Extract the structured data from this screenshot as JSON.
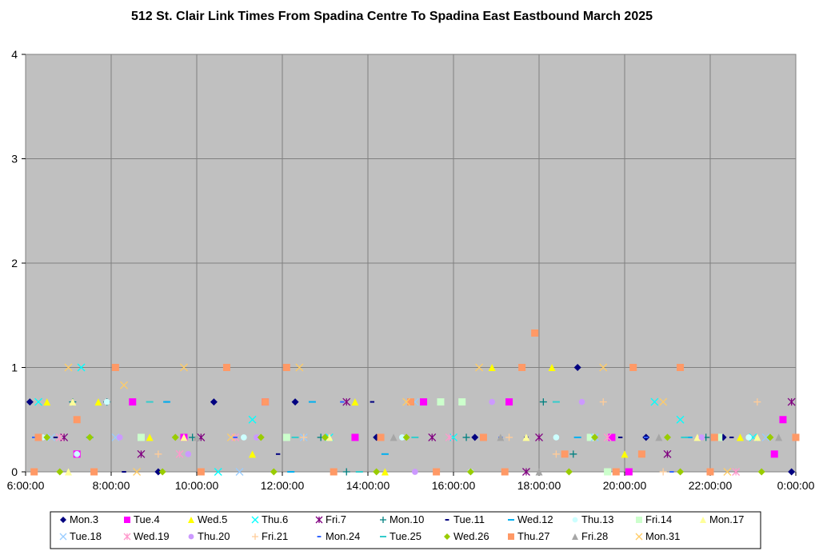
{
  "chart_data": {
    "type": "scatter",
    "title": "512 St. Clair Link Times From Spadina Centre To Spadina East Eastbound March 2025",
    "xlabel": "",
    "ylabel": "",
    "x_ticks": [
      "6:00:00",
      "8:00:00",
      "10:00:00",
      "12:00:00",
      "14:00:00",
      "16:00:00",
      "18:00:00",
      "20:00:00",
      "22:00:00",
      "0:00:00"
    ],
    "y_ticks": [
      "0",
      "1",
      "2",
      "3",
      "4"
    ],
    "xlim": [
      6,
      24
    ],
    "ylim": [
      0,
      4
    ],
    "grid": true,
    "plot_background": "#c0c0c0",
    "legend_position": "bottom",
    "series": [
      {
        "name": "Mon.3",
        "marker": "diamond",
        "color": "#000080",
        "points": [
          [
            6.1,
            0.67
          ],
          [
            7.9,
            0.67
          ],
          [
            10.4,
            0.67
          ],
          [
            12.3,
            0.67
          ],
          [
            14.2,
            0.33
          ],
          [
            16.5,
            0.33
          ],
          [
            18.9,
            1.0
          ],
          [
            20.5,
            0.33
          ],
          [
            22.3,
            0.33
          ],
          [
            23.9,
            0.0
          ],
          [
            9.1,
            0.0
          ]
        ]
      },
      {
        "name": "Tue.4",
        "marker": "square",
        "color": "#ff00ff",
        "points": [
          [
            7.2,
            0.17
          ],
          [
            8.5,
            0.67
          ],
          [
            9.7,
            0.33
          ],
          [
            11.6,
            0.67
          ],
          [
            13.7,
            0.33
          ],
          [
            15.3,
            0.67
          ],
          [
            17.3,
            0.67
          ],
          [
            19.7,
            0.33
          ],
          [
            23.5,
            0.17
          ],
          [
            23.7,
            0.5
          ],
          [
            20.1,
            0.0
          ]
        ]
      },
      {
        "name": "Wed.5",
        "marker": "triangle",
        "color": "#ffff00",
        "points": [
          [
            6.5,
            0.67
          ],
          [
            7.7,
            0.67
          ],
          [
            8.9,
            0.33
          ],
          [
            11.3,
            0.17
          ],
          [
            13.7,
            0.67
          ],
          [
            16.9,
            1.0
          ],
          [
            18.3,
            1.0
          ],
          [
            20.0,
            0.17
          ],
          [
            22.7,
            0.33
          ],
          [
            14.4,
            0.0
          ]
        ]
      },
      {
        "name": "Thu.6",
        "marker": "x",
        "color": "#00ffff",
        "points": [
          [
            6.3,
            0.67
          ],
          [
            7.3,
            1.0
          ],
          [
            11.3,
            0.5
          ],
          [
            13.1,
            0.33
          ],
          [
            16.0,
            0.33
          ],
          [
            19.3,
            0.33
          ],
          [
            20.7,
            0.67
          ],
          [
            21.3,
            0.5
          ],
          [
            23.0,
            0.33
          ],
          [
            10.5,
            0.0
          ]
        ]
      },
      {
        "name": "Fri.7",
        "marker": "star",
        "color": "#800080",
        "points": [
          [
            6.9,
            0.33
          ],
          [
            8.7,
            0.17
          ],
          [
            10.1,
            0.33
          ],
          [
            13.5,
            0.67
          ],
          [
            15.5,
            0.33
          ],
          [
            18.0,
            0.33
          ],
          [
            21.0,
            0.17
          ],
          [
            23.9,
            0.67
          ],
          [
            17.7,
            0.0
          ]
        ]
      },
      {
        "name": "Mon.10",
        "marker": "plus",
        "color": "#008080",
        "points": [
          [
            7.1,
            0.67
          ],
          [
            7.9,
            0.67
          ],
          [
            9.9,
            0.33
          ],
          [
            12.9,
            0.33
          ],
          [
            16.3,
            0.33
          ],
          [
            18.1,
            0.67
          ],
          [
            18.8,
            0.17
          ],
          [
            21.9,
            0.33
          ],
          [
            13.5,
            0.0
          ]
        ]
      },
      {
        "name": "Tue.11",
        "marker": "dash",
        "color": "#000080",
        "points": [
          [
            6.7,
            0.33
          ],
          [
            9.3,
            0.67
          ],
          [
            11.9,
            0.17
          ],
          [
            14.1,
            0.67
          ],
          [
            17.7,
            0.33
          ],
          [
            19.9,
            0.33
          ],
          [
            22.5,
            0.33
          ],
          [
            8.3,
            0.0
          ]
        ]
      },
      {
        "name": "Wed.12",
        "marker": "longdash",
        "color": "#00b0f0",
        "points": [
          [
            7.5,
            0.33
          ],
          [
            9.3,
            0.67
          ],
          [
            12.7,
            0.67
          ],
          [
            14.4,
            0.17
          ],
          [
            18.9,
            0.33
          ],
          [
            21.5,
            0.33
          ],
          [
            12.2,
            0.0
          ]
        ]
      },
      {
        "name": "Thu.13",
        "marker": "circle",
        "color": "#ccffff",
        "points": [
          [
            6.4,
            0.33
          ],
          [
            7.2,
            0.17
          ],
          [
            7.9,
            0.67
          ],
          [
            11.1,
            0.33
          ],
          [
            14.8,
            0.33
          ],
          [
            18.4,
            0.33
          ],
          [
            22.9,
            0.33
          ],
          [
            16.4,
            0.0
          ]
        ]
      },
      {
        "name": "Fri.14",
        "marker": "square",
        "color": "#ccffcc",
        "points": [
          [
            8.7,
            0.33
          ],
          [
            12.1,
            0.33
          ],
          [
            15.7,
            0.67
          ],
          [
            16.2,
            0.67
          ],
          [
            19.2,
            0.33
          ],
          [
            22.2,
            0.33
          ],
          [
            19.6,
            0.0
          ]
        ]
      },
      {
        "name": "Mon.17",
        "marker": "triangle",
        "color": "#ffff99",
        "points": [
          [
            7.1,
            0.67
          ],
          [
            9.7,
            0.33
          ],
          [
            13.1,
            0.33
          ],
          [
            17.7,
            0.33
          ],
          [
            21.7,
            0.33
          ],
          [
            23.1,
            0.33
          ],
          [
            7.0,
            0.0
          ]
        ]
      },
      {
        "name": "Tue.18",
        "marker": "x",
        "color": "#99ccff",
        "points": [
          [
            6.6,
            0.33
          ],
          [
            8.1,
            0.33
          ],
          [
            12.5,
            0.33
          ],
          [
            15.1,
            0.67
          ],
          [
            19.3,
            0.33
          ],
          [
            23.3,
            0.33
          ],
          [
            11.0,
            0.0
          ]
        ]
      },
      {
        "name": "Wed.19",
        "marker": "star",
        "color": "#ff99cc",
        "points": [
          [
            6.8,
            0.33
          ],
          [
            10.9,
            0.33
          ],
          [
            15.9,
            0.33
          ],
          [
            19.6,
            0.33
          ],
          [
            22.6,
            0.0
          ],
          [
            9.6,
            0.17
          ]
        ]
      },
      {
        "name": "Thu.20",
        "marker": "circle",
        "color": "#cc99ff",
        "points": [
          [
            8.2,
            0.33
          ],
          [
            11.4,
            0.33
          ],
          [
            16.9,
            0.67
          ],
          [
            19.0,
            0.67
          ],
          [
            21.8,
            0.33
          ],
          [
            9.8,
            0.17
          ],
          [
            15.1,
            0.0
          ]
        ]
      },
      {
        "name": "Fri.21",
        "marker": "plus",
        "color": "#ffcc99",
        "points": [
          [
            9.1,
            0.17
          ],
          [
            12.5,
            0.33
          ],
          [
            17.3,
            0.33
          ],
          [
            19.5,
            0.67
          ],
          [
            23.1,
            0.67
          ],
          [
            18.4,
            0.17
          ],
          [
            20.9,
            0.0
          ]
        ]
      },
      {
        "name": "Mon.24",
        "marker": "dash",
        "color": "#3366ff",
        "points": [
          [
            6.2,
            0.33
          ],
          [
            10.9,
            0.33
          ],
          [
            13.4,
            0.67
          ],
          [
            17.1,
            0.33
          ],
          [
            20.5,
            0.33
          ],
          [
            21.1,
            0.0
          ]
        ]
      },
      {
        "name": "Tue.25",
        "marker": "longdash",
        "color": "#33cccc",
        "points": [
          [
            8.9,
            0.67
          ],
          [
            12.3,
            0.33
          ],
          [
            15.1,
            0.33
          ],
          [
            18.4,
            0.67
          ],
          [
            21.4,
            0.33
          ],
          [
            13.8,
            0.0
          ]
        ]
      },
      {
        "name": "Wed.26",
        "marker": "diamond",
        "color": "#99cc00",
        "points": [
          [
            6.5,
            0.33
          ],
          [
            7.5,
            0.33
          ],
          [
            9.5,
            0.33
          ],
          [
            11.5,
            0.33
          ],
          [
            13.0,
            0.33
          ],
          [
            14.9,
            0.33
          ],
          [
            16.7,
            0.33
          ],
          [
            19.3,
            0.33
          ],
          [
            21.0,
            0.33
          ],
          [
            23.4,
            0.33
          ],
          [
            6.8,
            0.0
          ],
          [
            9.2,
            0.0
          ],
          [
            11.8,
            0.0
          ],
          [
            14.2,
            0.0
          ],
          [
            16.4,
            0.0
          ],
          [
            18.7,
            0.0
          ],
          [
            21.3,
            0.0
          ],
          [
            23.2,
            0.0
          ]
        ]
      },
      {
        "name": "Thu.27",
        "marker": "square",
        "color": "#ff9966",
        "points": [
          [
            6.3,
            0.33
          ],
          [
            7.2,
            0.5
          ],
          [
            8.1,
            1.0
          ],
          [
            10.7,
            1.0
          ],
          [
            12.1,
            1.0
          ],
          [
            14.3,
            0.33
          ],
          [
            15.0,
            0.67
          ],
          [
            16.7,
            0.33
          ],
          [
            17.9,
            1.33
          ],
          [
            17.6,
            1.0
          ],
          [
            20.2,
            1.0
          ],
          [
            21.3,
            1.0
          ],
          [
            18.6,
            0.17
          ],
          [
            20.4,
            0.17
          ],
          [
            22.1,
            0.33
          ],
          [
            24.0,
            0.33
          ],
          [
            6.2,
            0.0
          ],
          [
            7.6,
            0.0
          ],
          [
            10.1,
            0.0
          ],
          [
            13.2,
            0.0
          ],
          [
            15.6,
            0.0
          ],
          [
            17.2,
            0.0
          ],
          [
            19.8,
            0.0
          ],
          [
            22.0,
            0.0
          ],
          [
            11.6,
            0.67
          ]
        ]
      },
      {
        "name": "Fri.28",
        "marker": "triangle",
        "color": "#a6a6a6",
        "points": [
          [
            10.0,
            0.33
          ],
          [
            14.6,
            0.33
          ],
          [
            17.1,
            0.33
          ],
          [
            20.8,
            0.33
          ],
          [
            23.6,
            0.33
          ],
          [
            18.0,
            0.0
          ]
        ]
      },
      {
        "name": "Mon.31",
        "marker": "x",
        "color": "#ffcc66",
        "points": [
          [
            7.0,
            1.0
          ],
          [
            8.3,
            0.83
          ],
          [
            9.7,
            1.0
          ],
          [
            12.4,
            1.0
          ],
          [
            16.6,
            1.0
          ],
          [
            19.5,
            1.0
          ],
          [
            20.9,
            0.67
          ],
          [
            14.9,
            0.67
          ],
          [
            10.8,
            0.33
          ],
          [
            22.4,
            0.0
          ],
          [
            8.6,
            0.0
          ]
        ]
      }
    ]
  }
}
